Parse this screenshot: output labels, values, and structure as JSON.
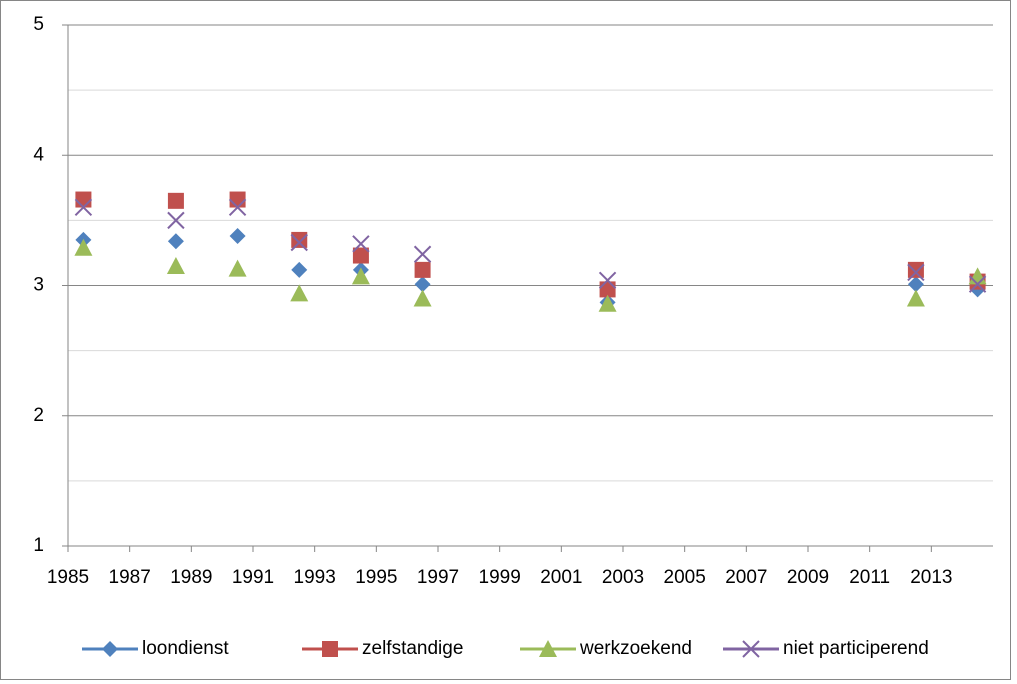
{
  "chart_data": {
    "type": "scatter",
    "xlim": [
      1985,
      2015
    ],
    "xticks": [
      1985,
      1987,
      1989,
      1991,
      1993,
      1995,
      1997,
      1999,
      2001,
      2003,
      2005,
      2007,
      2009,
      2011,
      2013
    ],
    "ylim": [
      1,
      5
    ],
    "yticks": [
      1,
      2,
      3,
      4,
      5
    ],
    "minor_yticks": [
      1.5,
      2.5,
      3.5,
      4.5
    ],
    "grid": true,
    "legend": "bottom",
    "x": [
      1985.5,
      1988.5,
      1990.5,
      1992.5,
      1994.5,
      1996.5,
      2002.5,
      2012.5,
      2014.5
    ],
    "series": [
      {
        "name": "loondienst",
        "color": "#4f81bd",
        "marker": "diamond",
        "values": [
          3.35,
          3.34,
          3.38,
          3.12,
          3.12,
          3.01,
          2.87,
          3.01,
          2.97
        ]
      },
      {
        "name": "zelfstandige",
        "color": "#c0504d",
        "marker": "square",
        "values": [
          3.66,
          3.65,
          3.66,
          3.35,
          3.23,
          3.12,
          2.97,
          3.12,
          3.03
        ]
      },
      {
        "name": "werkzoekend",
        "color": "#9bbb59",
        "marker": "triangle",
        "values": [
          3.29,
          3.15,
          3.13,
          2.94,
          3.07,
          2.9,
          2.86,
          2.9,
          3.07
        ]
      },
      {
        "name": "niet participerend",
        "color": "#8064a2",
        "marker": "x",
        "values": [
          3.6,
          3.5,
          3.6,
          3.33,
          3.32,
          3.24,
          3.04,
          3.1,
          3.01
        ]
      }
    ]
  }
}
